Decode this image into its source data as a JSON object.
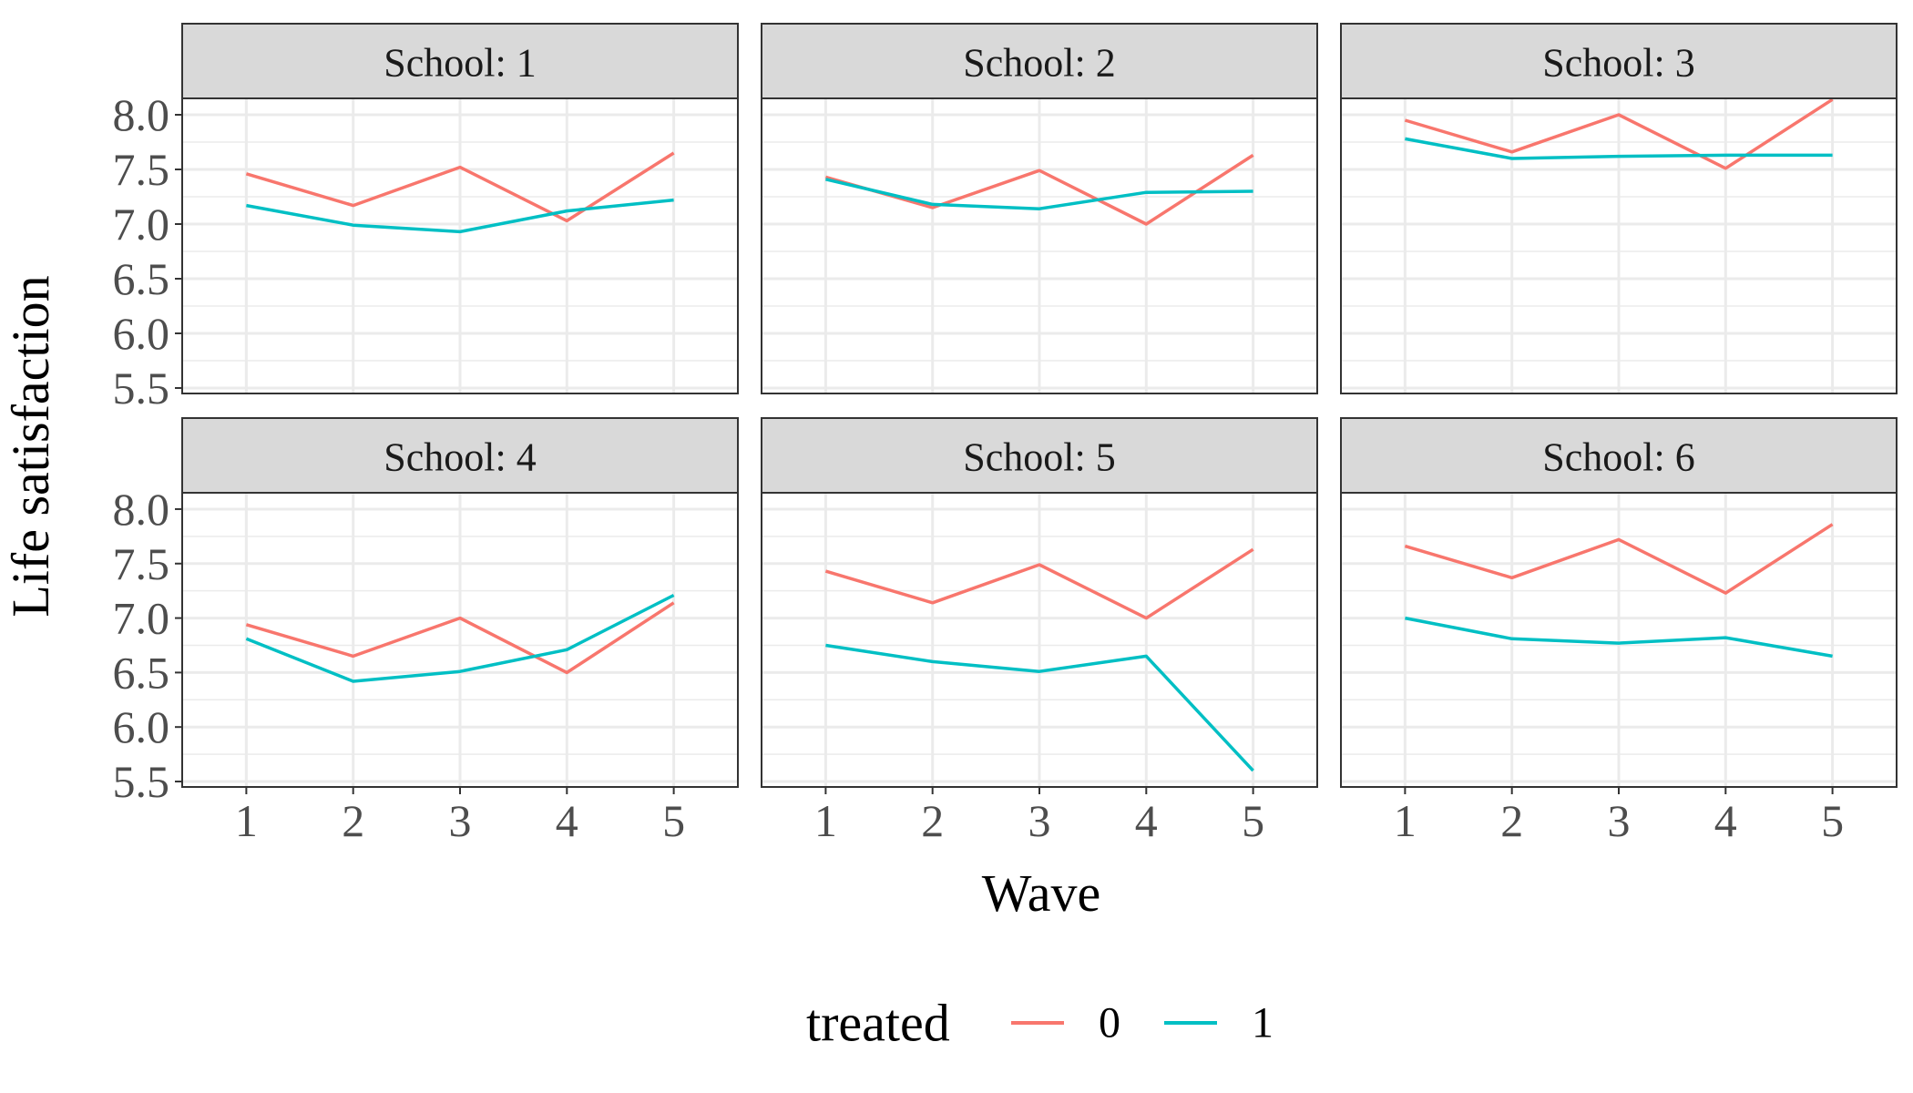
{
  "chart_data": {
    "type": "line",
    "facet_strip_prefix": "School: ",
    "xlabel": "Wave",
    "ylabel": "Life satisfaction",
    "x": [
      1,
      2,
      3,
      4,
      5
    ],
    "ylim": [
      5.45,
      8.15
    ],
    "xlim": [
      0.4,
      5.6
    ],
    "yticks": [
      5.5,
      6.0,
      6.5,
      7.0,
      7.5,
      8.0
    ],
    "ytick_labels": [
      "5.5",
      "6.0",
      "6.5",
      "7.0",
      "7.5",
      "8.0"
    ],
    "xtick_labels": [
      "1",
      "2",
      "3",
      "4",
      "5"
    ],
    "grid": true,
    "legend": {
      "title": "treated",
      "position": "bottom",
      "entries": [
        {
          "label": "0",
          "color": "#F8766D"
        },
        {
          "label": "1",
          "color": "#00BFC4"
        }
      ]
    },
    "panels": [
      {
        "facet": "1",
        "series": [
          {
            "name": "0",
            "values": [
              7.46,
              7.17,
              7.52,
              7.03,
              7.65
            ]
          },
          {
            "name": "1",
            "values": [
              7.17,
              6.99,
              6.93,
              7.12,
              7.22
            ]
          }
        ]
      },
      {
        "facet": "2",
        "series": [
          {
            "name": "0",
            "values": [
              7.43,
              7.15,
              7.49,
              7.0,
              7.63
            ]
          },
          {
            "name": "1",
            "values": [
              7.41,
              7.18,
              7.14,
              7.29,
              7.3
            ]
          }
        ]
      },
      {
        "facet": "3",
        "series": [
          {
            "name": "0",
            "values": [
              7.95,
              7.66,
              8.0,
              7.51,
              8.14
            ]
          },
          {
            "name": "1",
            "values": [
              7.78,
              7.6,
              7.62,
              7.63,
              7.63
            ]
          }
        ]
      },
      {
        "facet": "4",
        "series": [
          {
            "name": "0",
            "values": [
              6.94,
              6.65,
              7.0,
              6.5,
              7.14
            ]
          },
          {
            "name": "1",
            "values": [
              6.81,
              6.42,
              6.51,
              6.71,
              7.21
            ]
          }
        ]
      },
      {
        "facet": "5",
        "series": [
          {
            "name": "0",
            "values": [
              7.43,
              7.14,
              7.49,
              7.0,
              7.63
            ]
          },
          {
            "name": "1",
            "values": [
              6.75,
              6.6,
              6.51,
              6.65,
              5.6
            ]
          }
        ]
      },
      {
        "facet": "6",
        "series": [
          {
            "name": "0",
            "values": [
              7.66,
              7.37,
              7.72,
              7.23,
              7.86
            ]
          },
          {
            "name": "1",
            "values": [
              7.0,
              6.81,
              6.77,
              6.82,
              6.65
            ]
          }
        ]
      }
    ]
  }
}
